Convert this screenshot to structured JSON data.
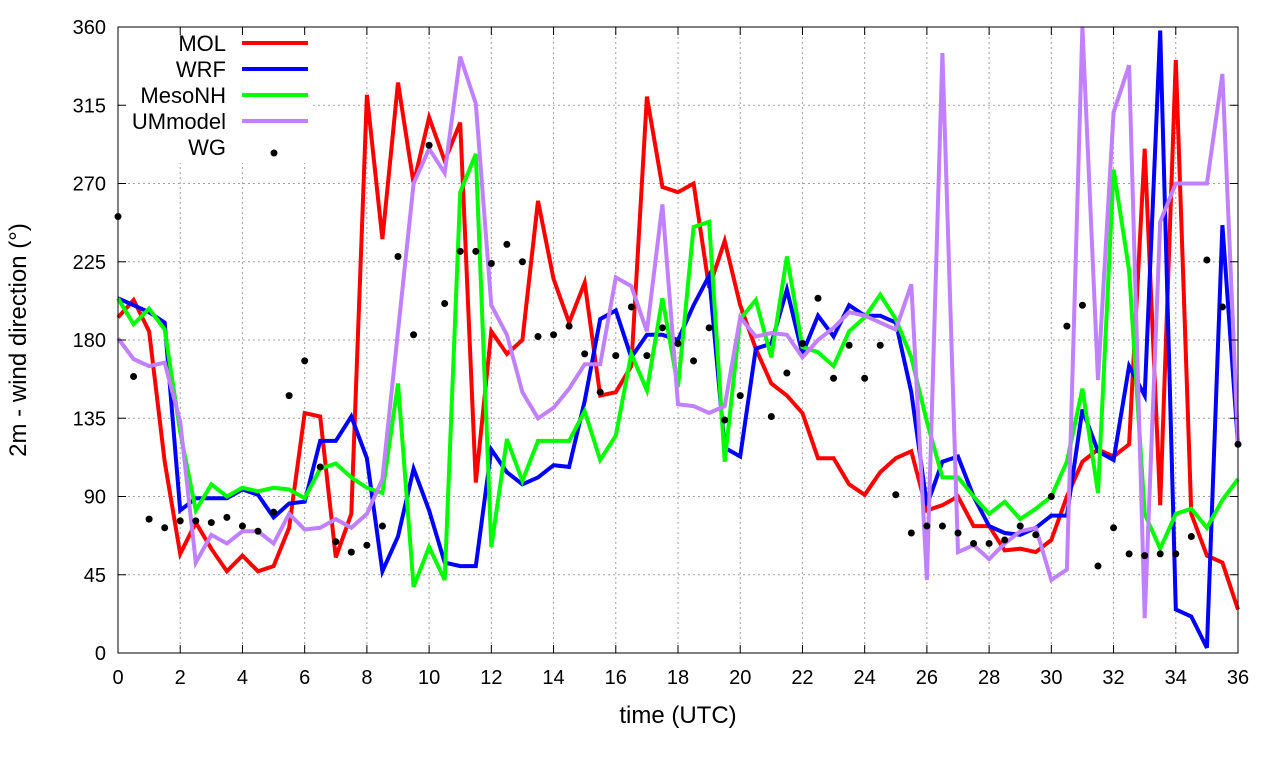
{
  "chart_data": {
    "type": "line",
    "title": "",
    "xlabel": "time (UTC)",
    "ylabel": "2m - wind direction (°)",
    "xlim": [
      0,
      36
    ],
    "ylim": [
      0,
      360
    ],
    "xticks": [
      0,
      2,
      4,
      6,
      8,
      10,
      12,
      14,
      16,
      18,
      20,
      22,
      24,
      26,
      28,
      30,
      32,
      34,
      36
    ],
    "yticks": [
      0,
      45,
      90,
      135,
      180,
      225,
      270,
      315,
      360
    ],
    "grid": true,
    "legend": "top-left",
    "x_step": 0.5,
    "series": [
      {
        "name": "MOL",
        "color": "#ff0000",
        "style": "line",
        "values": [
          193,
          203,
          185,
          110,
          57,
          75,
          60,
          47,
          56,
          47,
          50,
          72,
          138,
          136,
          55,
          80,
          321,
          238,
          328,
          270,
          308,
          283,
          305,
          98,
          185,
          172,
          180,
          260,
          215,
          190,
          213,
          148,
          150,
          165,
          320,
          268,
          265,
          270,
          210,
          237,
          200,
          175,
          155,
          148,
          138,
          112,
          112,
          97,
          91,
          104,
          112,
          116,
          82,
          85,
          90,
          73,
          73,
          59,
          60,
          58,
          65,
          90,
          110,
          117,
          113,
          120,
          290,
          85,
          341,
          80,
          56,
          52,
          25
        ]
      },
      {
        "name": "WRF",
        "color": "#0000ff",
        "style": "line",
        "values": [
          204,
          200,
          196,
          190,
          82,
          89,
          89,
          89,
          94,
          91,
          78,
          86,
          87,
          122,
          122,
          136,
          112,
          47,
          67,
          106,
          82,
          52,
          50,
          50,
          117,
          104,
          97,
          101,
          108,
          107,
          145,
          192,
          197,
          170,
          183,
          183,
          180,
          200,
          217,
          118,
          113,
          175,
          178,
          209,
          172,
          194,
          182,
          200,
          194,
          194,
          190,
          150,
          85,
          110,
          113,
          90,
          73,
          69,
          68,
          72,
          79,
          79,
          140,
          116,
          111,
          165,
          148,
          358,
          25,
          21,
          3,
          246,
          120
        ]
      },
      {
        "name": "MesoNH",
        "color": "#00ff00",
        "style": "line",
        "values": [
          204,
          189,
          198,
          186,
          127,
          82,
          97,
          90,
          95,
          93,
          95,
          94,
          89,
          106,
          109,
          101,
          95,
          92,
          155,
          38,
          61,
          42,
          265,
          287,
          61,
          123,
          99,
          122,
          122,
          122,
          139,
          111,
          125,
          172,
          151,
          204,
          153,
          245,
          248,
          110,
          192,
          203,
          170,
          228,
          176,
          173,
          165,
          185,
          193,
          206,
          192,
          170,
          133,
          101,
          101,
          90,
          80,
          87,
          77,
          83,
          90,
          110,
          152,
          92,
          278,
          220,
          80,
          60,
          80,
          83,
          72,
          88,
          100
        ]
      },
      {
        "name": "UMmodel",
        "color": "#c080ff",
        "style": "line",
        "values": [
          181,
          169,
          165,
          167,
          133,
          52,
          68,
          63,
          70,
          70,
          63,
          80,
          71,
          72,
          77,
          72,
          80,
          100,
          185,
          270,
          290,
          276,
          343,
          316,
          200,
          183,
          150,
          135,
          141,
          152,
          166,
          166,
          216,
          211,
          185,
          258,
          143,
          142,
          138,
          142,
          193,
          182,
          184,
          183,
          170,
          180,
          187,
          196,
          194,
          190,
          186,
          212,
          42,
          345,
          58,
          62,
          54,
          63,
          70,
          72,
          42,
          48,
          360,
          157,
          311,
          338,
          20,
          248,
          270,
          270,
          270,
          333,
          120
        ]
      },
      {
        "name": "WG",
        "color": "#000000",
        "style": "points",
        "points": [
          [
            0,
            251
          ],
          [
            0.5,
            159
          ],
          [
            1,
            77
          ],
          [
            1.5,
            72
          ],
          [
            2,
            76
          ],
          [
            2.5,
            76
          ],
          [
            3,
            75
          ],
          [
            3.5,
            78
          ],
          [
            4,
            73
          ],
          [
            4.5,
            70
          ],
          [
            5,
            81
          ],
          [
            5.5,
            148
          ],
          [
            6,
            168
          ],
          [
            6.5,
            107
          ],
          [
            7,
            64
          ],
          [
            7.5,
            58
          ],
          [
            8,
            62
          ],
          [
            8.5,
            73
          ],
          [
            9,
            228
          ],
          [
            9.5,
            183
          ],
          [
            10,
            292
          ],
          [
            10.5,
            201
          ],
          [
            11,
            231
          ],
          [
            11.5,
            231
          ],
          [
            12,
            224
          ],
          [
            12.5,
            235
          ],
          [
            13,
            225
          ],
          [
            13.5,
            182
          ],
          [
            14,
            183
          ],
          [
            14.5,
            188
          ],
          [
            15,
            172
          ],
          [
            15.5,
            150
          ],
          [
            16,
            171
          ],
          [
            16.5,
            199
          ],
          [
            17,
            171
          ],
          [
            17.5,
            187
          ],
          [
            18,
            178
          ],
          [
            18.5,
            168
          ],
          [
            19,
            187
          ],
          [
            19.5,
            134
          ],
          [
            20,
            148
          ],
          [
            21,
            136
          ],
          [
            21.5,
            161
          ],
          [
            22,
            178
          ],
          [
            22.5,
            204
          ],
          [
            23,
            158
          ],
          [
            23.5,
            177
          ],
          [
            24,
            158
          ],
          [
            24.5,
            177
          ],
          [
            25,
            91
          ],
          [
            25.5,
            69
          ],
          [
            26,
            73
          ],
          [
            26.5,
            73
          ],
          [
            27,
            69
          ],
          [
            27.5,
            63
          ],
          [
            28,
            63
          ],
          [
            28.5,
            65
          ],
          [
            29,
            73
          ],
          [
            29.5,
            68
          ],
          [
            30,
            90
          ],
          [
            30.5,
            188
          ],
          [
            31,
            200
          ],
          [
            31.5,
            50
          ],
          [
            32,
            72
          ],
          [
            32.5,
            57
          ],
          [
            33,
            56
          ],
          [
            33.5,
            57
          ],
          [
            34,
            57
          ],
          [
            34.5,
            67
          ],
          [
            35,
            226
          ],
          [
            35.5,
            199
          ],
          [
            36,
            120
          ]
        ]
      }
    ]
  }
}
